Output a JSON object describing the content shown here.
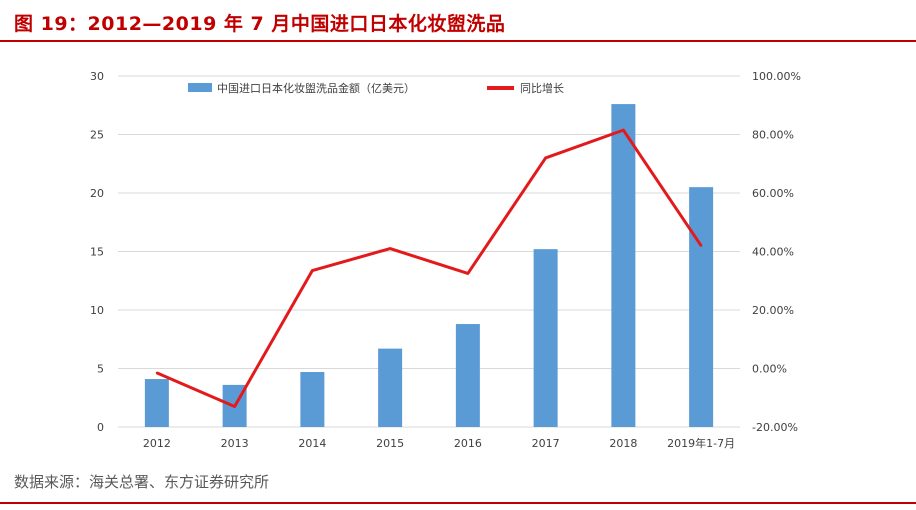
{
  "header": {
    "title": "图 19：2012—2019 年 7 月中国进口日本化妆盥洗品"
  },
  "source": "数据来源：海关总署、东方证券研究所",
  "colors": {
    "accent": "#c00000",
    "bar": "#5b9bd5",
    "line": "#e31a1c",
    "grid": "#d9d9d9",
    "axis_text": "#404040"
  },
  "chart_data": {
    "type": "bar+line",
    "title": "",
    "categories": [
      "2012",
      "2013",
      "2014",
      "2015",
      "2016",
      "2017",
      "2018",
      "2019年1-7月"
    ],
    "series": [
      {
        "name": "中国进口日本化妆盥洗品金额（亿美元）",
        "type": "bar",
        "axis": "left",
        "values": [
          4.1,
          3.6,
          4.7,
          6.7,
          8.8,
          15.2,
          27.6,
          20.5
        ]
      },
      {
        "name": "同比增长",
        "type": "line",
        "axis": "right",
        "values": [
          -1.5,
          -13.0,
          33.5,
          41.0,
          32.5,
          72.0,
          81.5,
          42.0
        ]
      }
    ],
    "y_left": {
      "label": "",
      "ylim": [
        0,
        30
      ],
      "ticks": [
        0,
        5,
        10,
        15,
        20,
        25,
        30
      ],
      "tick_labels": [
        "0",
        "5",
        "10",
        "15",
        "20",
        "25",
        "30"
      ]
    },
    "y_right": {
      "label": "",
      "ylim": [
        -20,
        100
      ],
      "ticks": [
        -20,
        0,
        20,
        40,
        60,
        80,
        100
      ],
      "tick_labels": [
        "-20.00%",
        "0.00%",
        "20.00%",
        "40.00%",
        "60.00%",
        "80.00%",
        "100.00%"
      ]
    },
    "grid": true,
    "legend_position": "top"
  }
}
